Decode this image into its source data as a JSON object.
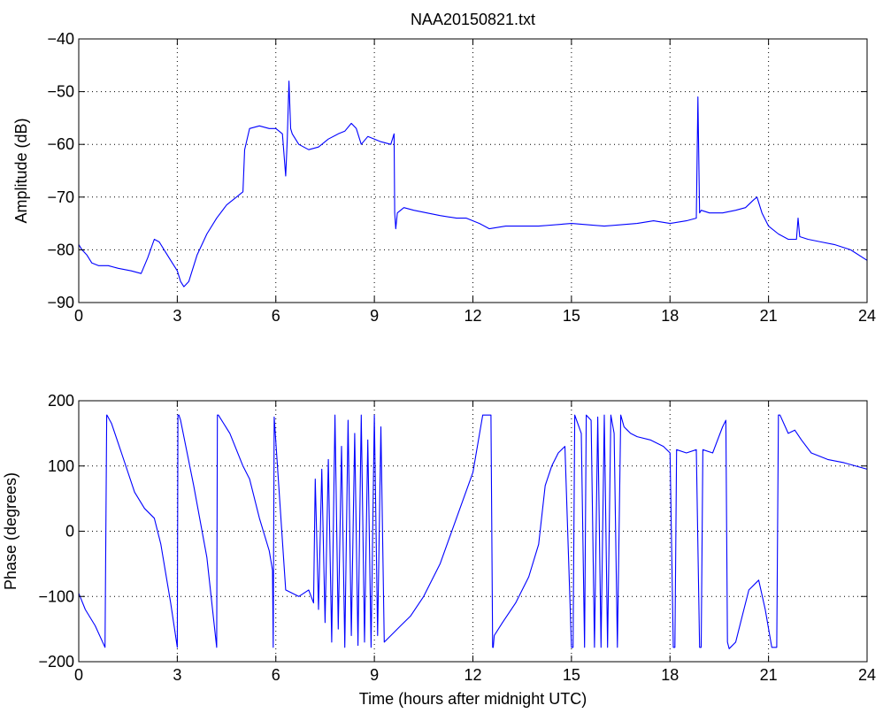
{
  "chart_data": [
    {
      "type": "line",
      "title": "NAA20150821.txt",
      "xlabel": "",
      "ylabel": "Amplitude (dB)",
      "xlim": [
        0,
        24
      ],
      "ylim": [
        -90,
        -40
      ],
      "xticks": [
        0,
        3,
        6,
        9,
        12,
        15,
        18,
        21,
        24
      ],
      "yticks": [
        -90,
        -80,
        -70,
        -60,
        -50,
        -40
      ],
      "xtick_labels": [
        "0",
        "3",
        "6",
        "9",
        "12",
        "15",
        "18",
        "21",
        "24"
      ],
      "ytick_labels": [
        "−90",
        "−80",
        "−70",
        "−60",
        "−50",
        "−40"
      ],
      "grid": true,
      "color": "#0000ff",
      "series": [
        {
          "x": [
            0,
            0.1,
            0.25,
            0.4,
            0.6,
            0.9,
            1.2,
            1.6,
            1.9,
            2.1,
            2.3,
            2.45,
            2.6,
            2.8,
            3.0,
            3.1,
            3.2,
            3.35,
            3.6,
            3.9,
            4.2,
            4.5,
            4.8,
            5.0,
            5.05,
            5.2,
            5.5,
            5.8,
            6.0,
            6.2,
            6.3,
            6.35,
            6.4,
            6.45,
            6.5,
            6.7,
            7.0,
            7.3,
            7.6,
            7.9,
            8.1,
            8.3,
            8.45,
            8.6,
            8.8,
            9.0,
            9.2,
            9.5,
            9.6,
            9.62,
            9.65,
            9.7,
            9.9,
            10.2,
            10.6,
            11.0,
            11.5,
            11.8,
            12.0,
            12.2,
            12.5,
            13.0,
            14.0,
            15.0,
            16.0,
            17.0,
            17.5,
            18.0,
            18.5,
            18.8,
            18.85,
            18.9,
            18.95,
            19.2,
            19.6,
            20.0,
            20.3,
            20.55,
            20.65,
            20.8,
            21.0,
            21.3,
            21.6,
            21.85,
            21.9,
            21.95,
            22.2,
            22.6,
            23.0,
            23.5,
            24.0
          ],
          "y": [
            -79,
            -80,
            -81,
            -82.5,
            -83,
            -83,
            -83.5,
            -84,
            -84.5,
            -81.5,
            -78,
            -78.5,
            -80,
            -82,
            -84,
            -86,
            -87,
            -86,
            -81,
            -77,
            -74,
            -71.5,
            -70,
            -69,
            -61,
            -57,
            -56.5,
            -57,
            -57,
            -58,
            -66,
            -59,
            -48,
            -57,
            -58,
            -60,
            -61,
            -60.5,
            -59,
            -58,
            -57.5,
            -56,
            -57,
            -60,
            -58.5,
            -59,
            -59.5,
            -60,
            -58,
            -73,
            -76,
            -73,
            -72,
            -72.5,
            -73,
            -73.5,
            -74,
            -74,
            -74.5,
            -75,
            -76,
            -75.5,
            -75.5,
            -75,
            -75.5,
            -75,
            -74.5,
            -75,
            -74.5,
            -74,
            -51,
            -73,
            -72.5,
            -73,
            -73,
            -72.5,
            -72,
            -70.5,
            -70,
            -73,
            -75.5,
            -77,
            -78,
            -78,
            -74,
            -77.5,
            -78,
            -78.5,
            -79,
            -80,
            -82
          ]
        }
      ]
    },
    {
      "type": "line",
      "title": "",
      "xlabel": "Time (hours after midnight UTC)",
      "ylabel": "Phase (degrees)",
      "xlim": [
        0,
        24
      ],
      "ylim": [
        -200,
        200
      ],
      "xticks": [
        0,
        3,
        6,
        9,
        12,
        15,
        18,
        21,
        24
      ],
      "yticks": [
        -200,
        -100,
        0,
        100,
        200
      ],
      "xtick_labels": [
        "0",
        "3",
        "6",
        "9",
        "12",
        "15",
        "18",
        "21",
        "24"
      ],
      "ytick_labels": [
        "−200",
        "−100",
        "0",
        "100",
        "200"
      ],
      "grid": true,
      "color": "#0000ff",
      "series": [
        {
          "x": [
            0,
            0.2,
            0.5,
            0.8,
            0.85,
            0.86,
            1.0,
            1.3,
            1.7,
            2.0,
            2.3,
            2.5,
            2.8,
            3.0,
            3.02,
            3.05,
            3.1,
            3.5,
            3.9,
            4.2,
            4.22,
            4.25,
            4.6,
            5.0,
            5.2,
            5.5,
            5.8,
            5.9,
            5.92,
            5.95,
            6.3,
            6.7,
            7.0,
            7.15,
            7.2,
            7.3,
            7.4,
            7.5,
            7.6,
            7.7,
            7.8,
            7.9,
            8.0,
            8.1,
            8.2,
            8.3,
            8.4,
            8.5,
            8.6,
            8.7,
            8.8,
            8.9,
            9.0,
            9.1,
            9.2,
            9.3,
            9.5,
            9.8,
            10.1,
            10.5,
            11.0,
            11.5,
            12.0,
            12.3,
            12.55,
            12.6,
            12.62,
            12.65,
            12.9,
            13.3,
            13.7,
            14.0,
            14.2,
            14.4,
            14.6,
            14.8,
            15.0,
            15.05,
            15.1,
            15.3,
            15.4,
            15.45,
            15.6,
            15.7,
            15.8,
            15.9,
            16.0,
            16.1,
            16.2,
            16.3,
            16.4,
            16.5,
            16.6,
            16.7,
            16.8,
            17.0,
            17.4,
            17.8,
            18.0,
            18.1,
            18.15,
            18.2,
            18.5,
            18.8,
            18.9,
            18.95,
            19.0,
            19.3,
            19.6,
            19.7,
            19.75,
            19.8,
            20.0,
            20.2,
            20.4,
            20.7,
            20.9,
            21.1,
            21.25,
            21.3,
            21.35,
            21.6,
            21.8,
            22.0,
            22.3,
            22.8,
            23.3,
            24.0
          ],
          "y": [
            -95,
            -120,
            -145,
            -178,
            178,
            178,
            165,
            120,
            60,
            35,
            20,
            -20,
            -110,
            -178,
            178,
            178,
            170,
            70,
            -40,
            -178,
            178,
            178,
            150,
            100,
            80,
            20,
            -30,
            -60,
            -178,
            175,
            -90,
            -100,
            -90,
            -110,
            80,
            -120,
            95,
            -140,
            110,
            -170,
            178,
            -150,
            130,
            -178,
            170,
            -160,
            150,
            -175,
            178,
            -170,
            140,
            -178,
            178,
            -160,
            160,
            -170,
            -160,
            -145,
            -130,
            -100,
            -50,
            20,
            90,
            178,
            178,
            -178,
            -178,
            -160,
            -140,
            -110,
            -70,
            -20,
            70,
            100,
            120,
            130,
            -178,
            -178,
            178,
            150,
            -178,
            178,
            170,
            -178,
            175,
            -178,
            178,
            -178,
            178,
            150,
            -178,
            178,
            160,
            155,
            150,
            145,
            140,
            130,
            120,
            -178,
            -178,
            125,
            120,
            125,
            -178,
            -178,
            125,
            120,
            160,
            170,
            -170,
            -180,
            -170,
            -130,
            -90,
            -75,
            -120,
            -178,
            -178,
            178,
            178,
            150,
            155,
            140,
            120,
            110,
            105,
            95
          ]
        }
      ]
    }
  ]
}
